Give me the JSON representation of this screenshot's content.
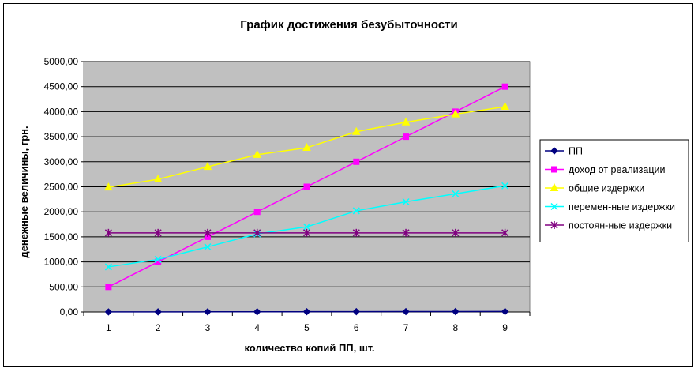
{
  "chart_data": {
    "type": "line",
    "title": "График достижения безубыточности",
    "xlabel": "количество  копий ПП, шт.",
    "ylabel": "денежные величины, грн.",
    "categories": [
      "1",
      "2",
      "3",
      "4",
      "5",
      "6",
      "7",
      "8",
      "9"
    ],
    "ylim": [
      0,
      5000
    ],
    "yticks": [
      "0,00",
      "500,00",
      "1000,00",
      "1500,00",
      "2000,00",
      "2500,00",
      "3000,00",
      "3500,00",
      "4000,00",
      "4500,00",
      "5000,00"
    ],
    "grid": true,
    "plot_background": "#c0c0c0",
    "legend_position": "right",
    "series": [
      {
        "name": "ПП",
        "values": [
          1,
          2,
          3,
          4,
          5,
          6,
          7,
          8,
          9
        ],
        "color": "#000080",
        "marker": "diamond"
      },
      {
        "name": "доход от реализации",
        "values": [
          500,
          1000,
          1500,
          2000,
          2500,
          3000,
          3500,
          4000,
          4500
        ],
        "color": "#ff00ff",
        "marker": "square"
      },
      {
        "name": "общие издержки",
        "values": [
          2490,
          2650,
          2900,
          3140,
          3280,
          3600,
          3790,
          3950,
          4100
        ],
        "color": "#ffff00",
        "marker": "triangle"
      },
      {
        "name": "перемен-ные издержки",
        "values": [
          900,
          1050,
          1300,
          1560,
          1700,
          2020,
          2200,
          2360,
          2520
        ],
        "color": "#00ffff",
        "marker": "x"
      },
      {
        "name": "постоян-ные издержки",
        "values": [
          1580,
          1580,
          1580,
          1580,
          1580,
          1580,
          1580,
          1580,
          1580
        ],
        "color": "#800080",
        "marker": "star"
      }
    ]
  }
}
